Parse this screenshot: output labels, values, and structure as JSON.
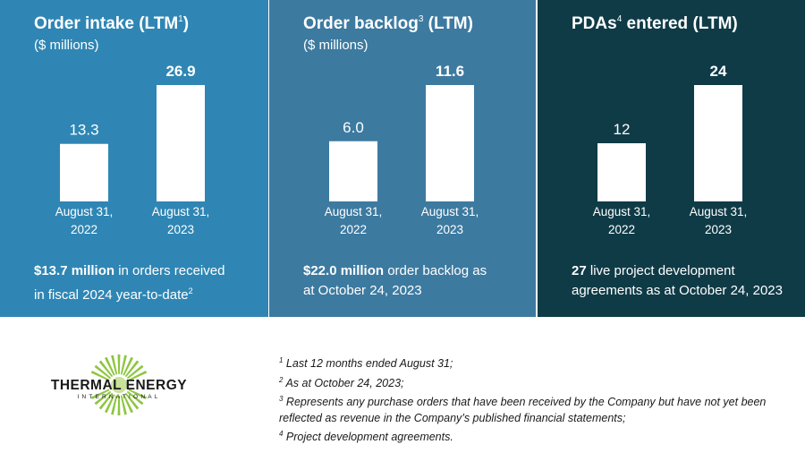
{
  "colors": {
    "panel_0_bg": "#2f86b4",
    "panel_1_bg": "#3d7aa0",
    "panel_2_bg": "#0f3b47",
    "bar": "#ffffff",
    "text_on_panel": "#ffffff",
    "logo_green": "#8dc63f",
    "logo_text": "#1a1a1a"
  },
  "panels": [
    {
      "title": "Order intake (LTM",
      "title_sup": "1",
      "title_suffix": ")",
      "subtitle": "($ millions)",
      "footer_bold": "$13.7 million",
      "footer_line1_rest": " in orders received",
      "footer_line2": "in fiscal 2024 year-to-date",
      "footer_sup": "2"
    },
    {
      "title": "Order backlog",
      "title_sup": "3",
      "title_suffix": " (LTM)",
      "subtitle": "($ millions)",
      "footer_bold": "$22.0 million",
      "footer_line1_rest": " order backlog as",
      "footer_line2": "at October 24, 2023",
      "footer_sup": ""
    },
    {
      "title": "PDAs",
      "title_sup": "4",
      "title_suffix": " entered (LTM)",
      "subtitle": "",
      "footer_bold": "27",
      "footer_line1_rest": " live project development",
      "footer_line2": "agreements  as at October 24, 2023",
      "footer_sup": ""
    }
  ],
  "chart_data": [
    {
      "type": "bar",
      "title": "Order intake (LTM1)",
      "subtitle": "($ millions)",
      "categories": [
        [
          "August 31,",
          "2022"
        ],
        [
          "August 31,",
          "2023"
        ]
      ],
      "values": [
        13.3,
        26.9
      ],
      "labels": [
        "13.3",
        "26.9"
      ],
      "label_bold": [
        false,
        true
      ],
      "ylim": [
        0,
        26.9
      ]
    },
    {
      "type": "bar",
      "title": "Order backlog3 (LTM)",
      "subtitle": "($ millions)",
      "categories": [
        [
          "August 31,",
          "2022"
        ],
        [
          "August 31,",
          "2023"
        ]
      ],
      "values": [
        6.0,
        11.6
      ],
      "labels": [
        "6.0",
        "11.6"
      ],
      "label_bold": [
        false,
        true
      ],
      "ylim": [
        0,
        11.6
      ]
    },
    {
      "type": "bar",
      "title": "PDAs4 entered (LTM)",
      "categories": [
        [
          "August 31,",
          "2022"
        ],
        [
          "August 31,",
          "2023"
        ]
      ],
      "values": [
        12,
        24
      ],
      "labels": [
        "12",
        "24"
      ],
      "label_bold": [
        false,
        true
      ],
      "ylim": [
        0,
        24
      ]
    }
  ],
  "logo": {
    "line1": "THERMAL ENERGY",
    "line2": "INTERNATIONAL"
  },
  "notes": [
    {
      "sup": "1",
      "text": " Last 12 months ended August 31;"
    },
    {
      "sup": "2",
      "text": " As at October 24, 2023;"
    },
    {
      "sup": "3",
      "text": " Represents any purchase orders that have been received by the Company but have not yet been reflected as revenue in the Company’s published financial statements;"
    },
    {
      "sup": "4",
      "text": " Project development agreements."
    }
  ]
}
